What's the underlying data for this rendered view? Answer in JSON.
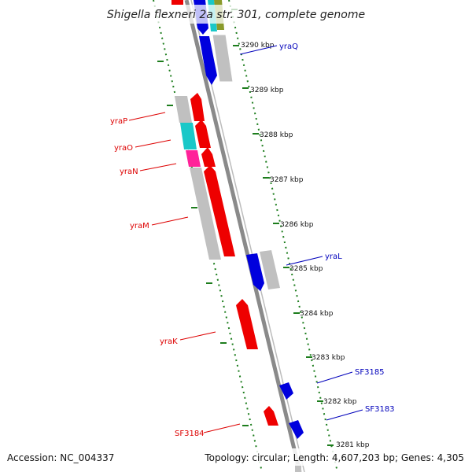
{
  "title": "Shigella flexneri 2a str. 301, complete genome",
  "footer": {
    "accession": "Accession: NC_004337",
    "summary": "Topology: circular; Length: 4,607,203 bp; Genes: 4,305"
  },
  "colors": {
    "backbone": "#8a8a8a",
    "tick": "#1d7d1d",
    "forward": "#ee0000",
    "reverse": "#0000dd",
    "pseudo": "#c0c0c0",
    "cyan": "#19c8c8",
    "magenta": "#ff2299",
    "leader": "#dd0000",
    "leader_reverse": "#0000bb"
  },
  "ticks": [
    "3290 kbp",
    "3289 kbp",
    "3288 kbp",
    "3287 kbp",
    "3286 kbp",
    "3285 kbp",
    "3284 kbp",
    "3283 kbp",
    "3282 kbp",
    "3281 kbp"
  ],
  "gene_labels": {
    "yraQ": "yraQ",
    "yraP": "yraP",
    "yraO": "yraO",
    "yraN": "yraN",
    "yraM": "yraM",
    "yraL": "yraL",
    "yraK": "yraK",
    "SF3185": "SF3185",
    "SF3183": "SF3183",
    "SF3184": "SF3184"
  },
  "icons": {
    "forward_gene": "red-arrow",
    "reverse_gene": "blue-arrow",
    "tick_mark": "green-dash"
  }
}
